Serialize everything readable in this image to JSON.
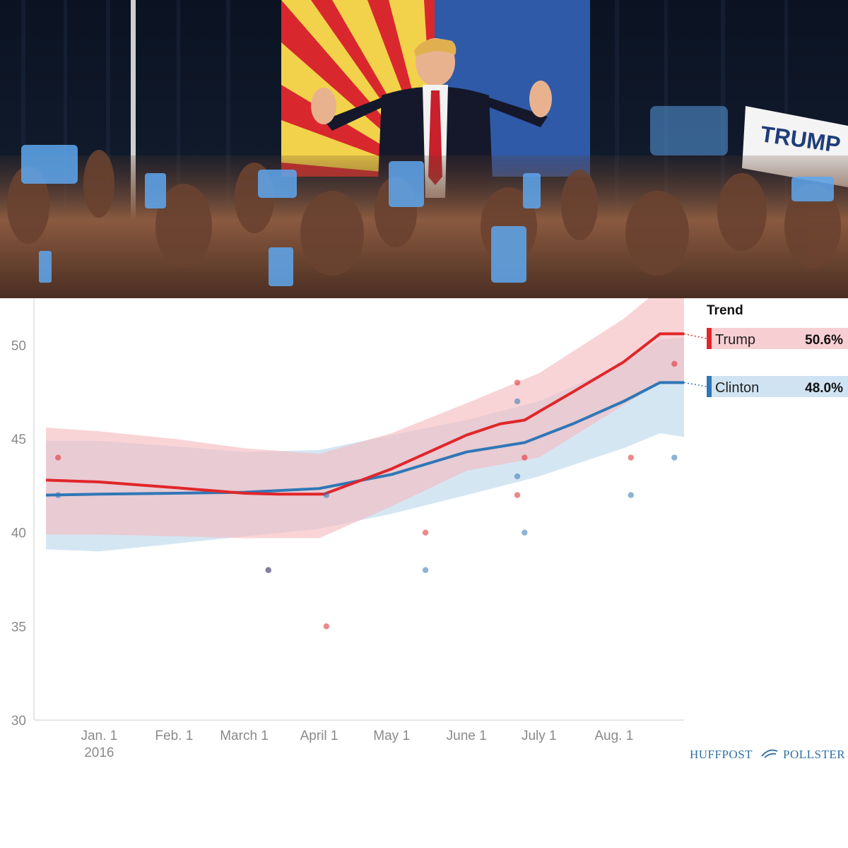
{
  "chart_data": {
    "type": "line",
    "title": "",
    "xlabel": "",
    "ylabel": "",
    "ylim": [
      30,
      52.5
    ],
    "y_ticks": [
      30,
      35,
      40,
      45,
      50
    ],
    "x_tick_labels": [
      {
        "label": "Jan. 1",
        "sub": "2016",
        "date": "2016-01-01"
      },
      {
        "label": "Feb. 1",
        "sub": "",
        "date": "2016-02-01"
      },
      {
        "label": "March 1",
        "sub": "",
        "date": "2016-03-01"
      },
      {
        "label": "April 1",
        "sub": "",
        "date": "2016-04-01"
      },
      {
        "label": "May 1",
        "sub": "",
        "date": "2016-05-01"
      },
      {
        "label": "June 1",
        "sub": "",
        "date": "2016-06-01"
      },
      {
        "label": "July 1",
        "sub": "",
        "date": "2016-07-01"
      },
      {
        "label": "Aug. 1",
        "sub": "",
        "date": "2016-08-01"
      }
    ],
    "xlim": [
      "2015-12-05",
      "2016-08-30"
    ],
    "grid": false,
    "legend": {
      "title": "Trend",
      "position": "right"
    },
    "series": [
      {
        "name": "Trump",
        "value_label": "50.6%",
        "color": "#e0262a",
        "band_color": "#f4b9bf",
        "trend": [
          {
            "x": "2015-12-10",
            "y": 42.8
          },
          {
            "x": "2016-01-01",
            "y": 42.7
          },
          {
            "x": "2016-02-01",
            "y": 42.4
          },
          {
            "x": "2016-03-01",
            "y": 42.1
          },
          {
            "x": "2016-03-15",
            "y": 42.05
          },
          {
            "x": "2016-04-03",
            "y": 42.05
          },
          {
            "x": "2016-05-01",
            "y": 43.4
          },
          {
            "x": "2016-06-01",
            "y": 45.2
          },
          {
            "x": "2016-06-15",
            "y": 45.8
          },
          {
            "x": "2016-06-25",
            "y": 46.0
          },
          {
            "x": "2016-07-15",
            "y": 47.5
          },
          {
            "x": "2016-08-05",
            "y": 49.1
          },
          {
            "x": "2016-08-20",
            "y": 50.6
          },
          {
            "x": "2016-08-30",
            "y": 50.6
          }
        ],
        "band_upper": [
          {
            "x": "2015-12-10",
            "y": 45.6
          },
          {
            "x": "2016-01-01",
            "y": 45.4
          },
          {
            "x": "2016-02-01",
            "y": 45.0
          },
          {
            "x": "2016-03-01",
            "y": 44.5
          },
          {
            "x": "2016-04-01",
            "y": 44.2
          },
          {
            "x": "2016-05-01",
            "y": 45.3
          },
          {
            "x": "2016-06-01",
            "y": 46.9
          },
          {
            "x": "2016-07-01",
            "y": 48.5
          },
          {
            "x": "2016-08-05",
            "y": 51.4
          },
          {
            "x": "2016-08-20",
            "y": 53.0
          },
          {
            "x": "2016-08-30",
            "y": 53.2
          }
        ],
        "band_lower": [
          {
            "x": "2015-12-10",
            "y": 39.9
          },
          {
            "x": "2016-01-01",
            "y": 39.9
          },
          {
            "x": "2016-02-01",
            "y": 39.8
          },
          {
            "x": "2016-03-01",
            "y": 39.7
          },
          {
            "x": "2016-04-01",
            "y": 39.7
          },
          {
            "x": "2016-05-01",
            "y": 41.4
          },
          {
            "x": "2016-06-01",
            "y": 43.3
          },
          {
            "x": "2016-07-01",
            "y": 44.0
          },
          {
            "x": "2016-08-05",
            "y": 46.8
          },
          {
            "x": "2016-08-20",
            "y": 48.0
          },
          {
            "x": "2016-08-30",
            "y": 48.1
          }
        ],
        "polls": [
          {
            "x": "2015-12-15",
            "y": 44
          },
          {
            "x": "2016-03-11",
            "y": 38
          },
          {
            "x": "2016-04-04",
            "y": 35
          },
          {
            "x": "2016-05-15",
            "y": 40
          },
          {
            "x": "2016-06-22",
            "y": 48
          },
          {
            "x": "2016-06-22",
            "y": 42
          },
          {
            "x": "2016-06-25",
            "y": 44
          },
          {
            "x": "2016-08-08",
            "y": 44
          },
          {
            "x": "2016-08-26",
            "y": 49
          }
        ]
      },
      {
        "name": "Clinton",
        "value_label": "48.0%",
        "color": "#2f77b6",
        "band_color": "#bcd7ec",
        "trend": [
          {
            "x": "2015-12-10",
            "y": 42.0
          },
          {
            "x": "2016-01-01",
            "y": 42.05
          },
          {
            "x": "2016-02-01",
            "y": 42.1
          },
          {
            "x": "2016-03-01",
            "y": 42.15
          },
          {
            "x": "2016-04-01",
            "y": 42.35
          },
          {
            "x": "2016-05-01",
            "y": 43.1
          },
          {
            "x": "2016-06-01",
            "y": 44.3
          },
          {
            "x": "2016-06-25",
            "y": 44.8
          },
          {
            "x": "2016-07-15",
            "y": 45.8
          },
          {
            "x": "2016-08-05",
            "y": 47.0
          },
          {
            "x": "2016-08-20",
            "y": 48.0
          },
          {
            "x": "2016-08-30",
            "y": 48.0
          }
        ],
        "band_upper": [
          {
            "x": "2015-12-10",
            "y": 44.9
          },
          {
            "x": "2016-01-01",
            "y": 44.9
          },
          {
            "x": "2016-02-01",
            "y": 44.6
          },
          {
            "x": "2016-03-01",
            "y": 44.3
          },
          {
            "x": "2016-04-01",
            "y": 44.4
          },
          {
            "x": "2016-05-01",
            "y": 45.2
          },
          {
            "x": "2016-06-01",
            "y": 46.0
          },
          {
            "x": "2016-07-01",
            "y": 47.0
          },
          {
            "x": "2016-08-05",
            "y": 49.0
          },
          {
            "x": "2016-08-20",
            "y": 50.3
          },
          {
            "x": "2016-08-30",
            "y": 50.4
          }
        ],
        "band_lower": [
          {
            "x": "2015-12-10",
            "y": 39.1
          },
          {
            "x": "2016-01-01",
            "y": 39.0
          },
          {
            "x": "2016-02-01",
            "y": 39.4
          },
          {
            "x": "2016-03-01",
            "y": 39.8
          },
          {
            "x": "2016-04-01",
            "y": 40.2
          },
          {
            "x": "2016-05-01",
            "y": 41.0
          },
          {
            "x": "2016-06-01",
            "y": 42.0
          },
          {
            "x": "2016-07-01",
            "y": 43.0
          },
          {
            "x": "2016-08-05",
            "y": 44.5
          },
          {
            "x": "2016-08-20",
            "y": 45.3
          },
          {
            "x": "2016-08-30",
            "y": 45.1
          }
        ],
        "polls": [
          {
            "x": "2015-12-15",
            "y": 42
          },
          {
            "x": "2016-03-11",
            "y": 38
          },
          {
            "x": "2016-04-04",
            "y": 42
          },
          {
            "x": "2016-05-15",
            "y": 38
          },
          {
            "x": "2016-06-22",
            "y": 47
          },
          {
            "x": "2016-06-22",
            "y": 43
          },
          {
            "x": "2016-06-25",
            "y": 40
          },
          {
            "x": "2016-08-08",
            "y": 42
          },
          {
            "x": "2016-08-26",
            "y": 44
          }
        ]
      }
    ]
  },
  "photo": {
    "sign_text": "TRUMP"
  },
  "footer": {
    "brand_left": "HUFFPOST",
    "brand_right": "POLLSTER"
  }
}
